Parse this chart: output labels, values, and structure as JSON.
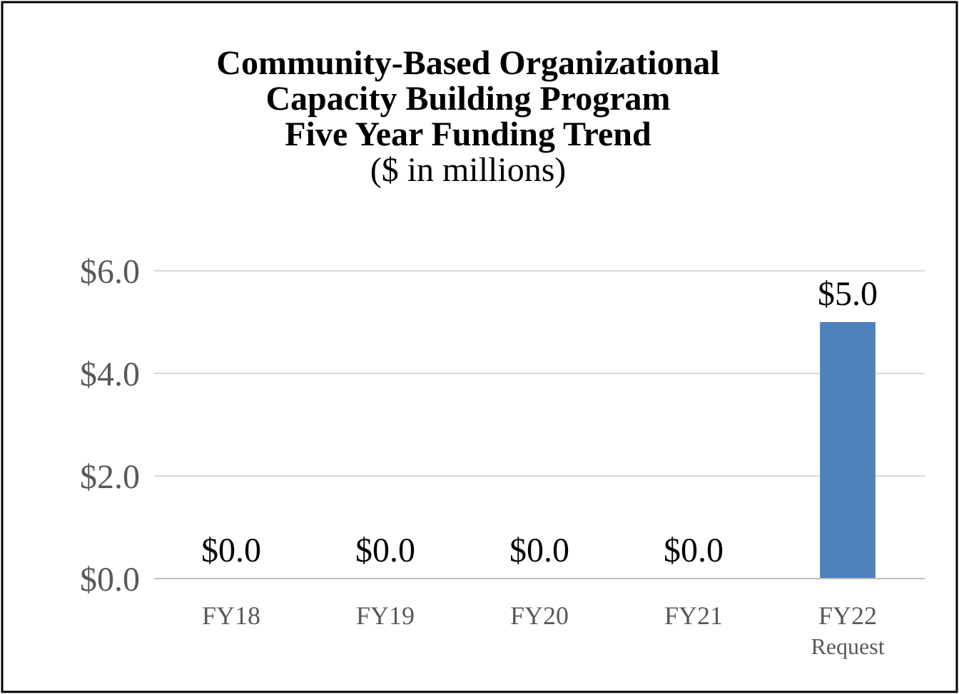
{
  "chart_data": {
    "type": "bar",
    "title": "Community-Based Organizational\nCapacity Building Program\nFive Year Funding Trend",
    "subtitle": "($ in millions)",
    "categories": [
      "FY18",
      "FY19",
      "FY20",
      "FY21",
      "FY22 Request"
    ],
    "values": [
      0,
      0,
      0,
      0,
      5
    ],
    "color": "#4f81bd",
    "value_labels": [
      "$0.0",
      "$0.0",
      "$0.0",
      "$0.0",
      "$5.0"
    ],
    "ylim": [
      0,
      6
    ],
    "yticks": [
      {
        "value": 0,
        "label": "$0.0"
      },
      {
        "value": 2,
        "label": "$2.0"
      },
      {
        "value": 4,
        "label": "$4.0"
      },
      {
        "value": 6,
        "label": "$6.0"
      }
    ],
    "grid": "y"
  }
}
